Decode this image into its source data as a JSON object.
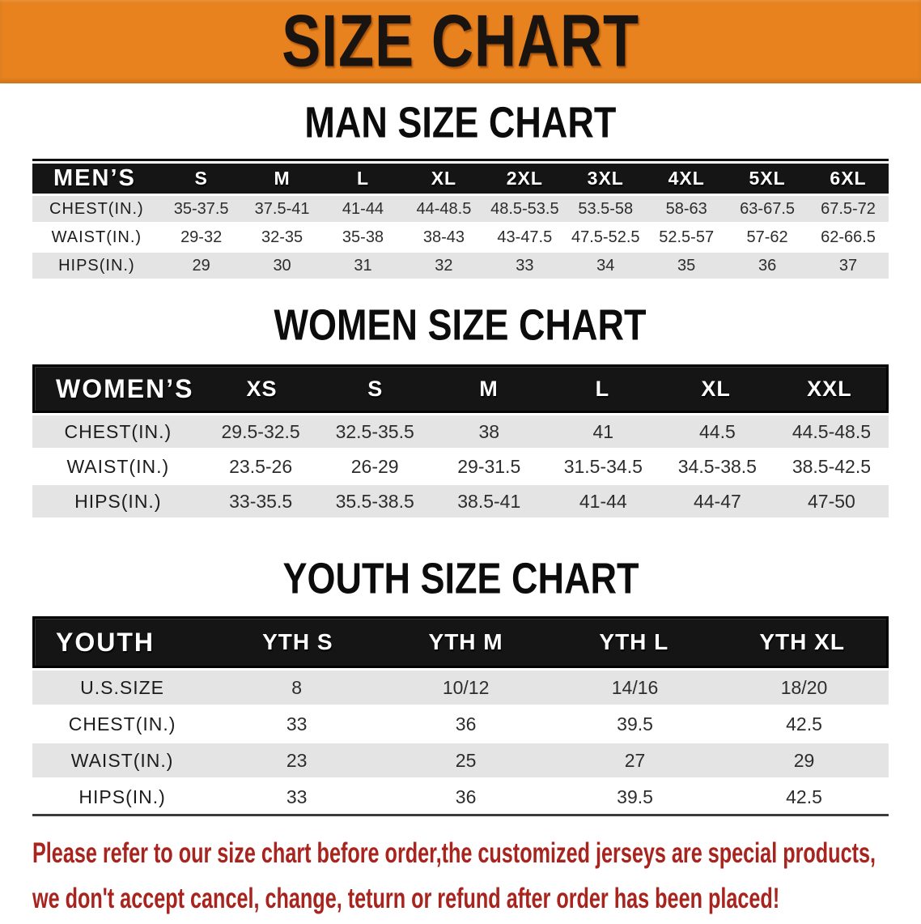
{
  "banner": {
    "title": "SIZE CHART"
  },
  "colors": {
    "banner_bg": "#e7821e",
    "banner_text": "#1a1410",
    "table_header_bg": "#151515",
    "table_header_text": "#ffffff",
    "row_shade": "#e4e4e4",
    "row_white": "#ffffff",
    "notice_text": "#a8241f"
  },
  "sections": [
    {
      "title": "MAN SIZE CHART",
      "table": {
        "header": [
          "MEN’S",
          "S",
          "M",
          "L",
          "XL",
          "2XL",
          "3XL",
          "4XL",
          "5XL",
          "6XL"
        ],
        "rows": [
          {
            "label": "CHEST(IN.)",
            "values": [
              "35-37.5",
              "37.5-41",
              "41-44",
              "44-48.5",
              "48.5-53.5",
              "53.5-58",
              "58-63",
              "63-67.5",
              "67.5-72"
            ]
          },
          {
            "label": "WAIST(IN.)",
            "values": [
              "29-32",
              "32-35",
              "35-38",
              "38-43",
              "43-47.5",
              "47.5-52.5",
              "52.5-57",
              "57-62",
              "62-66.5"
            ]
          },
          {
            "label": "HIPS(IN.)",
            "values": [
              "29",
              "30",
              "31",
              "32",
              "33",
              "34",
              "35",
              "36",
              "37"
            ]
          }
        ]
      }
    },
    {
      "title": "WOMEN SIZE CHART",
      "table": {
        "header": [
          "WOMEN’S",
          "XS",
          "S",
          "M",
          "L",
          "XL",
          "XXL"
        ],
        "rows": [
          {
            "label": "CHEST(IN.)",
            "values": [
              "29.5-32.5",
              "32.5-35.5",
              "38",
              "41",
              "44.5",
              "44.5-48.5"
            ]
          },
          {
            "label": "WAIST(IN.)",
            "values": [
              "23.5-26",
              "26-29",
              "29-31.5",
              "31.5-34.5",
              "34.5-38.5",
              "38.5-42.5"
            ]
          },
          {
            "label": "HIPS(IN.)",
            "values": [
              "33-35.5",
              "35.5-38.5",
              "38.5-41",
              "41-44",
              "44-47",
              "47-50"
            ]
          }
        ]
      }
    },
    {
      "title": "YOUTH SIZE CHART",
      "table": {
        "header": [
          "YOUTH",
          "YTH S",
          "YTH M",
          "YTH L",
          "YTH XL"
        ],
        "rows": [
          {
            "label": "U.S.SIZE",
            "values": [
              "8",
              "10/12",
              "14/16",
              "18/20"
            ]
          },
          {
            "label": "CHEST(IN.)",
            "values": [
              "33",
              "36",
              "39.5",
              "42.5"
            ]
          },
          {
            "label": "WAIST(IN.)",
            "values": [
              "23",
              "25",
              "27",
              "29"
            ]
          },
          {
            "label": "HIPS(IN.)",
            "values": [
              "33",
              "36",
              "39.5",
              "42.5"
            ]
          }
        ]
      }
    }
  ],
  "footer": {
    "line1": "Please refer to our size chart before order,the customized jerseys are special products,",
    "line2": "we don't accept cancel, change, teturn or refund after order has been placed!"
  }
}
